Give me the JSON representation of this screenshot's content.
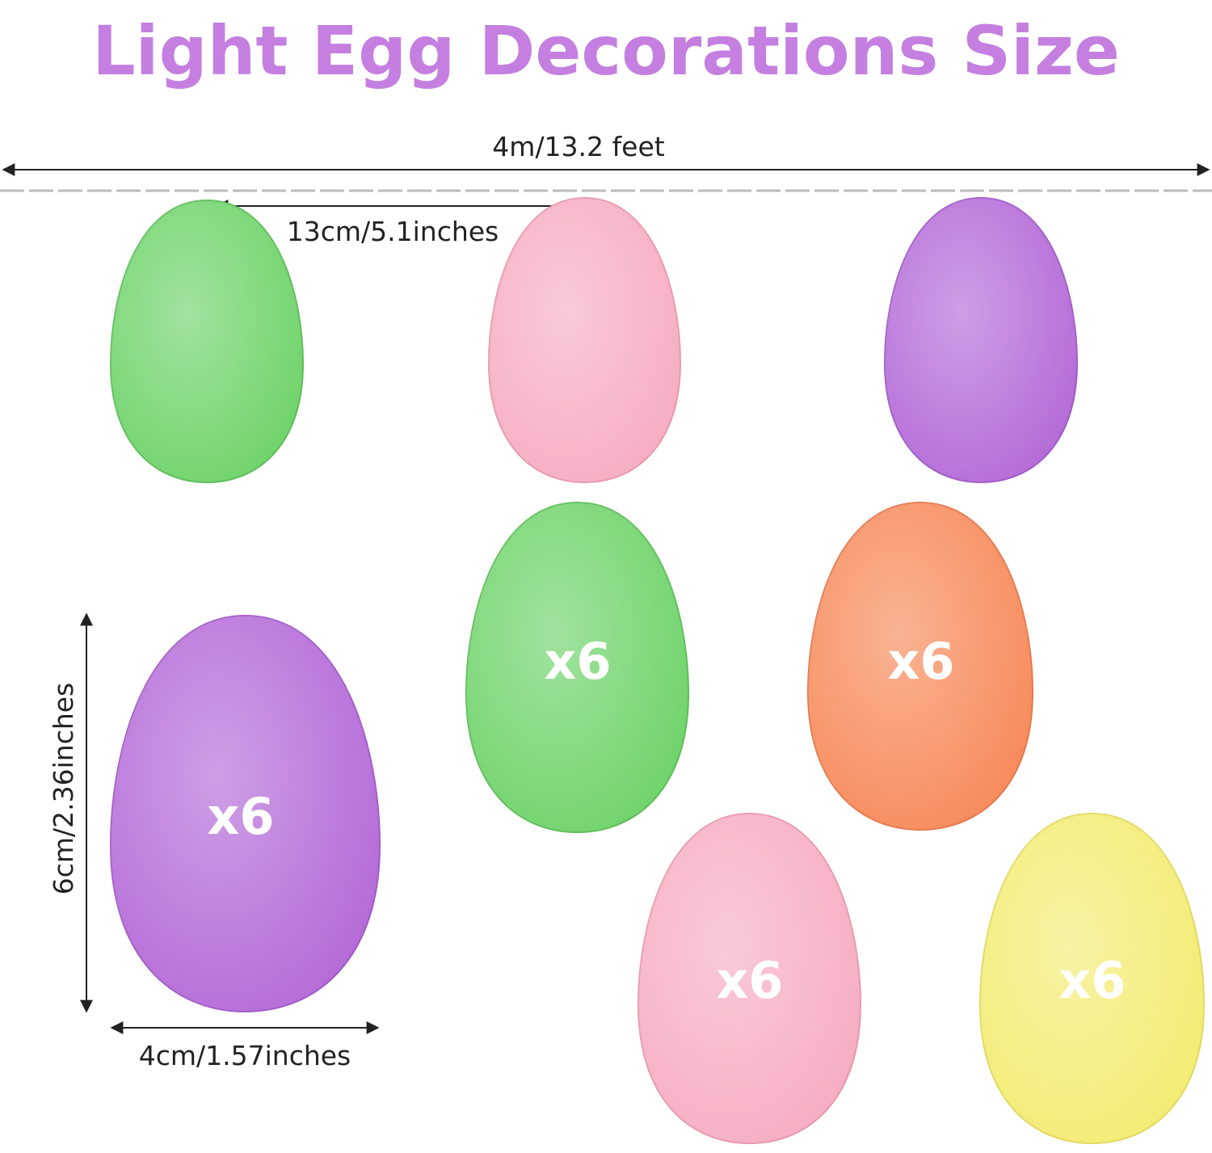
{
  "title": "Light Egg Decorations Size",
  "dimensions": {
    "string_length": "4m/13.2 feet",
    "spacing": "13cm/5.1inches",
    "height": "6cm/2.36inches",
    "width": "4cm/1.57inches"
  },
  "eggs": [
    {
      "label": "x6"
    },
    {
      "label": "x6"
    },
    {
      "label": "x6"
    },
    {
      "label": "x6"
    },
    {
      "label": "x6"
    }
  ]
}
